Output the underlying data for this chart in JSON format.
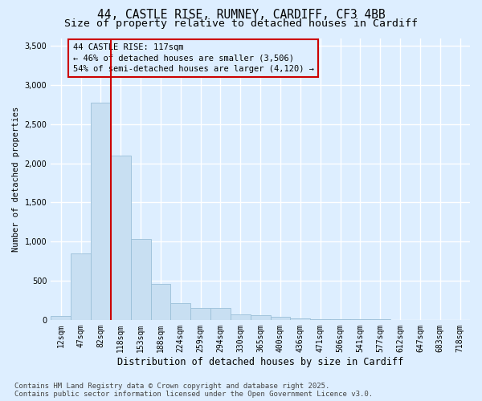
{
  "title1": "44, CASTLE RISE, RUMNEY, CARDIFF, CF3 4BB",
  "title2": "Size of property relative to detached houses in Cardiff",
  "xlabel": "Distribution of detached houses by size in Cardiff",
  "ylabel": "Number of detached properties",
  "categories": [
    "12sqm",
    "47sqm",
    "82sqm",
    "118sqm",
    "153sqm",
    "188sqm",
    "224sqm",
    "259sqm",
    "294sqm",
    "330sqm",
    "365sqm",
    "400sqm",
    "436sqm",
    "471sqm",
    "506sqm",
    "541sqm",
    "577sqm",
    "612sqm",
    "647sqm",
    "683sqm",
    "718sqm"
  ],
  "values": [
    50,
    850,
    2780,
    2100,
    1030,
    460,
    210,
    155,
    155,
    70,
    60,
    40,
    15,
    10,
    8,
    5,
    4,
    3,
    2,
    2,
    1
  ],
  "bar_color": "#c8dff2",
  "bar_edge_color": "#9abfd8",
  "vline_x": 2.5,
  "vline_color": "#cc0000",
  "annotation_box_text": "44 CASTLE RISE: 117sqm\n← 46% of detached houses are smaller (3,506)\n54% of semi-detached houses are larger (4,120) →",
  "annotation_box_color": "#cc0000",
  "bg_color": "#ddeeff",
  "plot_bg_color": "#ddeeff",
  "ylim": [
    0,
    3600
  ],
  "yticks": [
    0,
    500,
    1000,
    1500,
    2000,
    2500,
    3000,
    3500
  ],
  "footnote": "Contains HM Land Registry data © Crown copyright and database right 2025.\nContains public sector information licensed under the Open Government Licence v3.0.",
  "title1_fontsize": 10.5,
  "title2_fontsize": 9.5,
  "xlabel_fontsize": 8.5,
  "ylabel_fontsize": 7.5,
  "tick_fontsize": 7,
  "annot_fontsize": 7.5,
  "footnote_fontsize": 6.5
}
